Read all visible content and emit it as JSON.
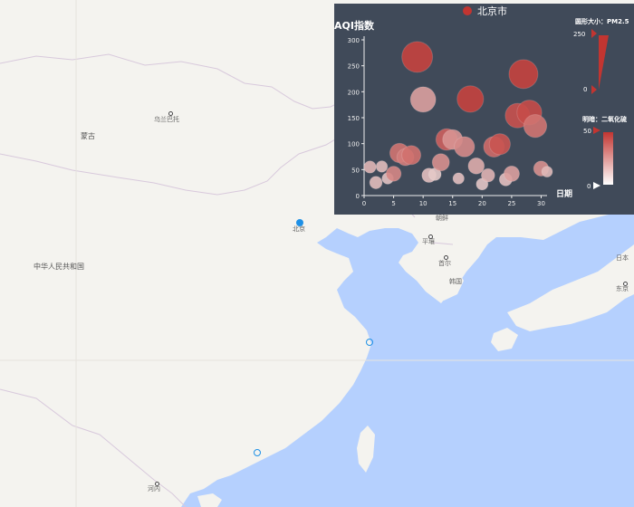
{
  "map": {
    "labels": {
      "mongolia": "蒙古",
      "ulaanbaatar": "乌兰巴托",
      "beijing": "北京",
      "china": "中华人民共和国",
      "north_korea": "朝鲜",
      "pyongyang": "平壤",
      "seoul": "首尔",
      "south_korea": "韩国",
      "japan": "日本",
      "tokyo": "东京",
      "hanoi": "河内"
    },
    "colors": {
      "land": "#f4f3ef",
      "sea": "#b5d0fe",
      "marker": "#1e90e6"
    }
  },
  "chart_data": {
    "type": "scatter",
    "title": "AQI指数",
    "xlabel": "日期",
    "legend": {
      "series_name": "北京市",
      "placement": "top"
    },
    "xlim": [
      0,
      31
    ],
    "ylim": [
      0,
      300
    ],
    "xticks": [
      0,
      5,
      10,
      15,
      20,
      25,
      30
    ],
    "yticks": [
      0,
      50,
      100,
      150,
      200,
      250,
      300
    ],
    "size_legend": {
      "label": "圆形大小：PM2.5",
      "max": 250,
      "min": 0
    },
    "color_legend": {
      "label": "明暗：二氧化硫",
      "max": 50,
      "min": 0
    },
    "series": [
      {
        "name": "北京市",
        "color": "#c23531",
        "points": [
          {
            "x": 1,
            "y": 55,
            "size": 9,
            "shade": 9
          },
          {
            "x": 2,
            "y": 25,
            "size": 11,
            "shade": 7
          },
          {
            "x": 3,
            "y": 56,
            "size": 7,
            "shade": 7
          },
          {
            "x": 4,
            "y": 33,
            "size": 7,
            "shade": 5
          },
          {
            "x": 5,
            "y": 42,
            "size": 24,
            "shade": 24
          },
          {
            "x": 6,
            "y": 82,
            "size": 58,
            "shade": 30
          },
          {
            "x": 7,
            "y": 74,
            "size": 37,
            "shade": 27
          },
          {
            "x": 8,
            "y": 78,
            "size": 54,
            "shade": 31
          },
          {
            "x": 9,
            "y": 267,
            "size": 216,
            "shade": 46
          },
          {
            "x": 10,
            "y": 185,
            "size": 127,
            "shade": 16
          },
          {
            "x": 11,
            "y": 39,
            "size": 19,
            "shade": 6
          },
          {
            "x": 12,
            "y": 41,
            "size": 11,
            "shade": 3
          },
          {
            "x": 13,
            "y": 64,
            "size": 38,
            "shade": 21
          },
          {
            "x": 14,
            "y": 108,
            "size": 79,
            "shade": 36
          },
          {
            "x": 15,
            "y": 108,
            "size": 63,
            "shade": 20
          },
          {
            "x": 16,
            "y": 33,
            "size": 6,
            "shade": 6
          },
          {
            "x": 17,
            "y": 94,
            "size": 66,
            "shade": 23
          },
          {
            "x": 18,
            "y": 186,
            "size": 142,
            "shade": 46
          },
          {
            "x": 19,
            "y": 57,
            "size": 31,
            "shade": 12
          },
          {
            "x": 20,
            "y": 22,
            "size": 8,
            "shade": 4
          },
          {
            "x": 21,
            "y": 39,
            "size": 15,
            "shade": 10
          },
          {
            "x": 22,
            "y": 94,
            "size": 69,
            "shade": 33
          },
          {
            "x": 23,
            "y": 99,
            "size": 73,
            "shade": 40
          },
          {
            "x": 24,
            "y": 31,
            "size": 12,
            "shade": 6
          },
          {
            "x": 25,
            "y": 42,
            "size": 27,
            "shade": 16
          },
          {
            "x": 26,
            "y": 154,
            "size": 117,
            "shade": 41
          },
          {
            "x": 27,
            "y": 234,
            "size": 185,
            "shade": 46
          },
          {
            "x": 28,
            "y": 160,
            "size": 120,
            "shade": 43
          },
          {
            "x": 29,
            "y": 134,
            "size": 96,
            "shade": 30
          },
          {
            "x": 30,
            "y": 52,
            "size": 24,
            "shade": 21
          },
          {
            "x": 31,
            "y": 46,
            "size": 5,
            "shade": 8
          }
        ]
      }
    ]
  }
}
